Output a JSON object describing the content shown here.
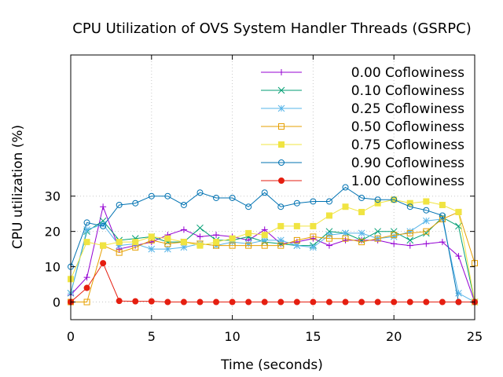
{
  "chart_data": {
    "type": "line",
    "title": "CPU Utilization of OVS System Handler Threads (GSRPC)",
    "xlabel": "Time (seconds)",
    "ylabel": "CPU utilization (%)",
    "xlim": [
      0,
      25
    ],
    "ylim": [
      -5,
      70
    ],
    "x_ticks": [
      0,
      5,
      10,
      15,
      20,
      25
    ],
    "y_ticks": [
      0,
      10,
      20,
      30
    ],
    "grid": true,
    "legend_position": "top-right",
    "x": [
      0,
      1,
      2,
      3,
      4,
      5,
      6,
      7,
      8,
      9,
      10,
      11,
      12,
      13,
      14,
      15,
      16,
      17,
      18,
      19,
      20,
      21,
      22,
      23,
      24,
      25
    ],
    "series": [
      {
        "name": "0.00 Coflowiness",
        "color": "#9400d3",
        "marker": "plus",
        "values": [
          2,
          7,
          27,
          15,
          16,
          17,
          19,
          20.5,
          18.5,
          19,
          18.5,
          17.5,
          20.5,
          16.5,
          17,
          18,
          16,
          17.5,
          17.5,
          17.5,
          16.5,
          16,
          16.5,
          17,
          13,
          0
        ]
      },
      {
        "name": "0.10 Coflowiness",
        "color": "#009e73",
        "marker": "x",
        "values": [
          2.5,
          20,
          23,
          17.5,
          18,
          18.5,
          17,
          17,
          21,
          17.5,
          17.5,
          18.5,
          17,
          16.5,
          16,
          16,
          20,
          19.5,
          17.5,
          20,
          20,
          17.5,
          19.5,
          24,
          21.5,
          0
        ]
      },
      {
        "name": "0.25 Coflowiness",
        "color": "#56b4e9",
        "marker": "star",
        "values": [
          2.5,
          20.5,
          22,
          16,
          16.5,
          15,
          15,
          15.5,
          16.5,
          16,
          17,
          16.5,
          17.5,
          17.5,
          16,
          15.5,
          19,
          19.5,
          19.5,
          18,
          18.5,
          20,
          23,
          23.5,
          2.5,
          0
        ]
      },
      {
        "name": "0.50 Coflowiness",
        "color": "#e69f00",
        "marker": "open-square",
        "values": [
          0,
          0,
          16,
          14,
          15.5,
          17.5,
          16.5,
          17,
          16.5,
          16,
          16,
          16,
          16,
          16,
          17.5,
          18.5,
          18,
          18,
          17,
          18,
          19,
          19.5,
          20,
          23.5,
          25.5,
          11
        ]
      },
      {
        "name": "0.75 Coflowiness",
        "color": "#f0e442",
        "marker": "filled-square",
        "values": [
          6.5,
          17,
          16,
          17,
          17,
          18.5,
          18,
          17,
          16,
          17,
          18,
          19.5,
          19,
          21.5,
          21.5,
          21.5,
          24.5,
          27,
          25.5,
          28,
          29,
          28,
          28.5,
          27.5,
          25.5,
          0
        ]
      },
      {
        "name": "0.90 Coflowiness",
        "color": "#0072b2",
        "marker": "open-circle",
        "values": [
          10,
          22.5,
          21.5,
          27.5,
          28,
          30,
          30,
          27.5,
          31,
          29.5,
          29.5,
          27,
          31,
          27,
          28,
          28.5,
          28.5,
          32.5,
          29.5,
          29,
          29,
          27,
          26,
          24.5,
          0,
          0
        ]
      },
      {
        "name": "1.00 Coflowiness",
        "color": "#e51e10",
        "marker": "filled-circle",
        "values": [
          0,
          4,
          11,
          0.3,
          0.2,
          0.2,
          0,
          0,
          0,
          0,
          0,
          0,
          0,
          0,
          0,
          0,
          0,
          0,
          0,
          0,
          0,
          0,
          0,
          0,
          0,
          0
        ]
      }
    ]
  }
}
